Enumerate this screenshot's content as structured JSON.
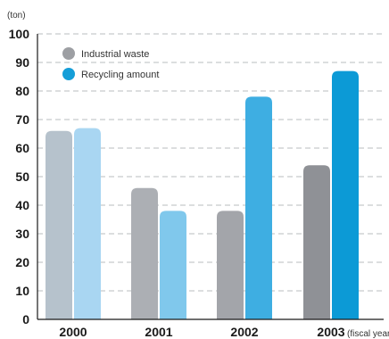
{
  "chart_data": {
    "type": "bar",
    "y_unit": "(ton)",
    "x_unit": "(fiscal year)",
    "categories": [
      "2000",
      "2001",
      "2002",
      "2003"
    ],
    "ylim": [
      0,
      100
    ],
    "y_ticks": [
      "0",
      "10",
      "20",
      "30",
      "40",
      "50",
      "60",
      "70",
      "80",
      "90",
      "100"
    ],
    "grid": true,
    "legend_position": "top-left",
    "series": [
      {
        "name": "Industrial waste",
        "values": [
          66,
          46,
          38,
          54
        ],
        "legend_color": "#9d9fa3",
        "bar_colors": [
          "#b6c2cc",
          "#acafb4",
          "#a3a5aa",
          "#8f9196"
        ]
      },
      {
        "name": "Recycling amount",
        "values": [
          67,
          38,
          78,
          87
        ],
        "legend_color": "#159ed8",
        "bar_colors": [
          "#a9d6f2",
          "#80c8ec",
          "#3eaee2",
          "#0c9ad6"
        ]
      }
    ]
  }
}
